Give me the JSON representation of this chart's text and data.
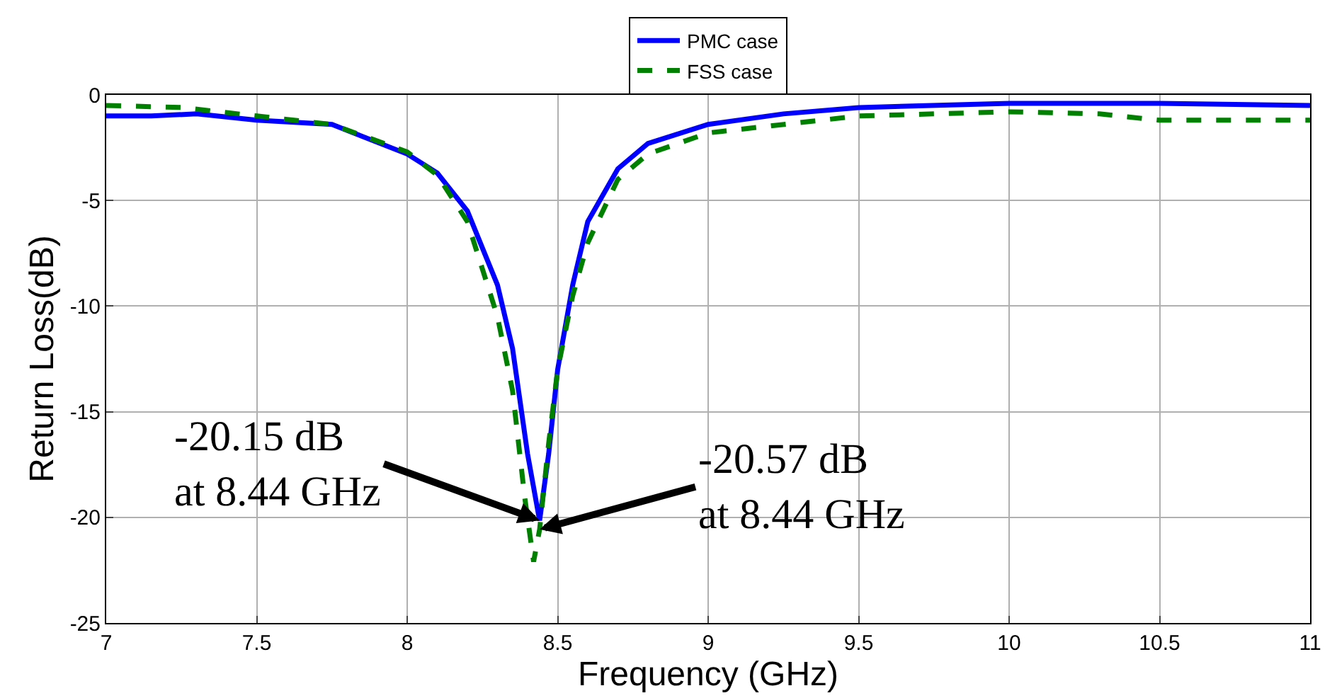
{
  "chart_data": {
    "type": "line",
    "xlabel": "Frequency (GHz)",
    "ylabel": "Return Loss(dB)",
    "xlim": [
      7,
      11
    ],
    "xticks": [
      7,
      7.5,
      8,
      8.5,
      9,
      9.5,
      10,
      10.5,
      11
    ],
    "ylim": [
      -25,
      0
    ],
    "yticks": [
      -25,
      -20,
      -15,
      -10,
      -5,
      0
    ],
    "grid": true,
    "legend": "top",
    "marker": "none",
    "series": [
      {
        "name": "PMC case",
        "color": "#0000ff",
        "line_style": "solid",
        "x": [
          7,
          7.15,
          7.3,
          7.5,
          7.75,
          8.0,
          8.1,
          8.2,
          8.3,
          8.35,
          8.4,
          8.44,
          8.47,
          8.5,
          8.55,
          8.6,
          8.7,
          8.8,
          9.0,
          9.25,
          9.5,
          10,
          10.5,
          11
        ],
        "values": [
          -1.0,
          -1.0,
          -0.9,
          -1.2,
          -1.4,
          -2.8,
          -3.7,
          -5.5,
          -9,
          -12,
          -17,
          -20.15,
          -17,
          -13,
          -9,
          -6,
          -3.5,
          -2.3,
          -1.4,
          -0.9,
          -0.6,
          -0.4,
          -0.4,
          -0.5
        ]
      },
      {
        "name": "FSS case",
        "color": "#008000",
        "line_style": "dashed",
        "x": [
          7,
          7.25,
          7.5,
          7.75,
          8.0,
          8.1,
          8.2,
          8.3,
          8.35,
          8.39,
          8.42,
          8.44,
          8.47,
          8.5,
          8.55,
          8.6,
          8.7,
          8.8,
          9.0,
          9.5,
          10,
          10.3,
          10.5,
          11
        ],
        "values": [
          -0.5,
          -0.6,
          -1.0,
          -1.4,
          -2.7,
          -3.8,
          -6,
          -10.5,
          -14,
          -19,
          -22.1,
          -20.57,
          -16.5,
          -13,
          -9.5,
          -7,
          -4,
          -2.8,
          -1.8,
          -1.0,
          -0.8,
          -0.9,
          -1.2,
          -1.2
        ]
      }
    ],
    "annotations": [
      {
        "text": "-20.15 dB\nat 8.44 GHz",
        "x": 8.44,
        "y": -20.15
      },
      {
        "text": "-20.57 dB\nat 8.44 GHz",
        "x": 8.44,
        "y": -20.57
      }
    ]
  }
}
